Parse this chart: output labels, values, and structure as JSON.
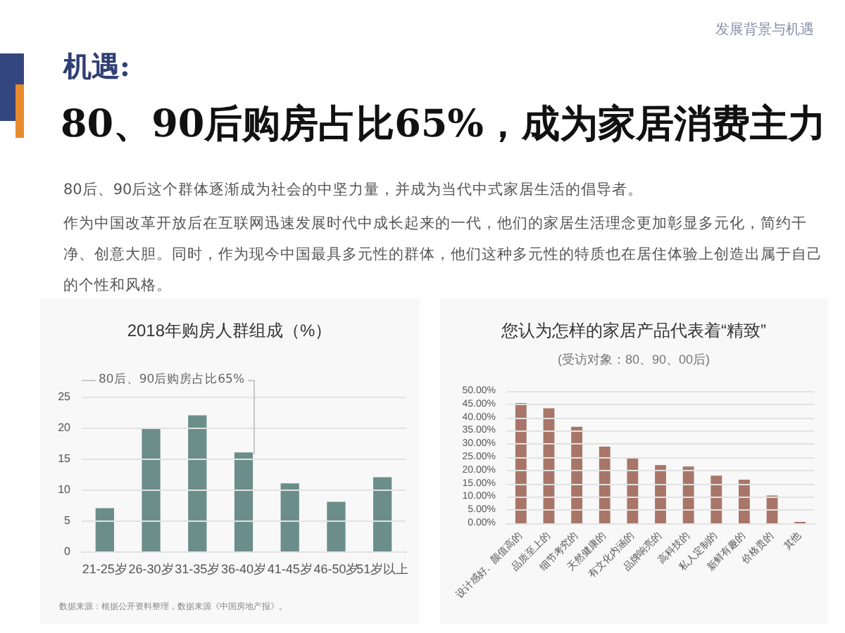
{
  "chart_data": [
    {
      "type": "other",
      "title": "机遇:",
      "subtitle": "80、90后购房占比65%，成为家居消费主力",
      "annotations": [
        "发展背景与机遇",
        "80后、90后这个群体逐渐成为社会的中坚力量，并成为当代中式家居生活的倡导者。",
        "作为中国改革开放后在互联网迅速发展时代中成长起来的一代，他们的家居生活理念更加彰显多元化，简约干净、创意大胆。同时，作为现今中国最具多元性的群体，他们这种多元性的特质也在居住体验上创造出属于自己的个性和风格。"
      ]
    },
    {
      "type": "bar",
      "title": "2018年购房人群组成（%）",
      "categories": [
        "21-25岁",
        "26-30岁",
        "31-35岁",
        "36-40岁",
        "41-45岁",
        "46-50岁",
        "51岁以上"
      ],
      "values": [
        7,
        20,
        22,
        16,
        11,
        8,
        12
      ],
      "color": "#6b8e8a",
      "ylim": [
        0,
        25
      ],
      "yticks": [
        0,
        5,
        10,
        15,
        20,
        25
      ],
      "grid": "y",
      "annotations": [
        {
          "text": "80后、90后购房占比65%",
          "x": "36-40岁",
          "y": 16
        },
        "数据来源：根据公开资料整理，数据来源《中国房地产报》。"
      ]
    },
    {
      "type": "bar",
      "title": "您认为怎样的家居产品代表着“精致”",
      "subtitle": "(受访对象：80、90、00后)",
      "categories": [
        "设计感好、颜值高的",
        "品质至上的",
        "细节考究的",
        "天然健康的",
        "有文化内涵的",
        "品牌响亮的",
        "高科技的",
        "私人定制的",
        "新鲜有趣的",
        "价格贵的",
        "其他"
      ],
      "values": [
        45.5,
        43.5,
        36.5,
        29,
        25,
        22,
        21.5,
        18,
        16.5,
        10.5,
        0.5
      ],
      "color": "#a87668",
      "ylim": [
        0,
        50
      ],
      "yticks": [
        {
          "value": 0,
          "label": "0.00%"
        },
        {
          "value": 5,
          "label": "5.00%"
        },
        {
          "value": 10,
          "label": "10.00%"
        },
        {
          "value": 15,
          "label": "15.00%"
        },
        {
          "value": 20,
          "label": "20.00%"
        },
        {
          "value": 25,
          "label": "25.00%"
        },
        {
          "value": 30,
          "label": "30.00%"
        },
        {
          "value": 35,
          "label": "35.00%"
        },
        {
          "value": 40,
          "label": "40.00%"
        },
        {
          "value": 45,
          "label": "45.00%"
        },
        {
          "value": 50,
          "label": "50.00%"
        }
      ],
      "grid": "y"
    }
  ]
}
